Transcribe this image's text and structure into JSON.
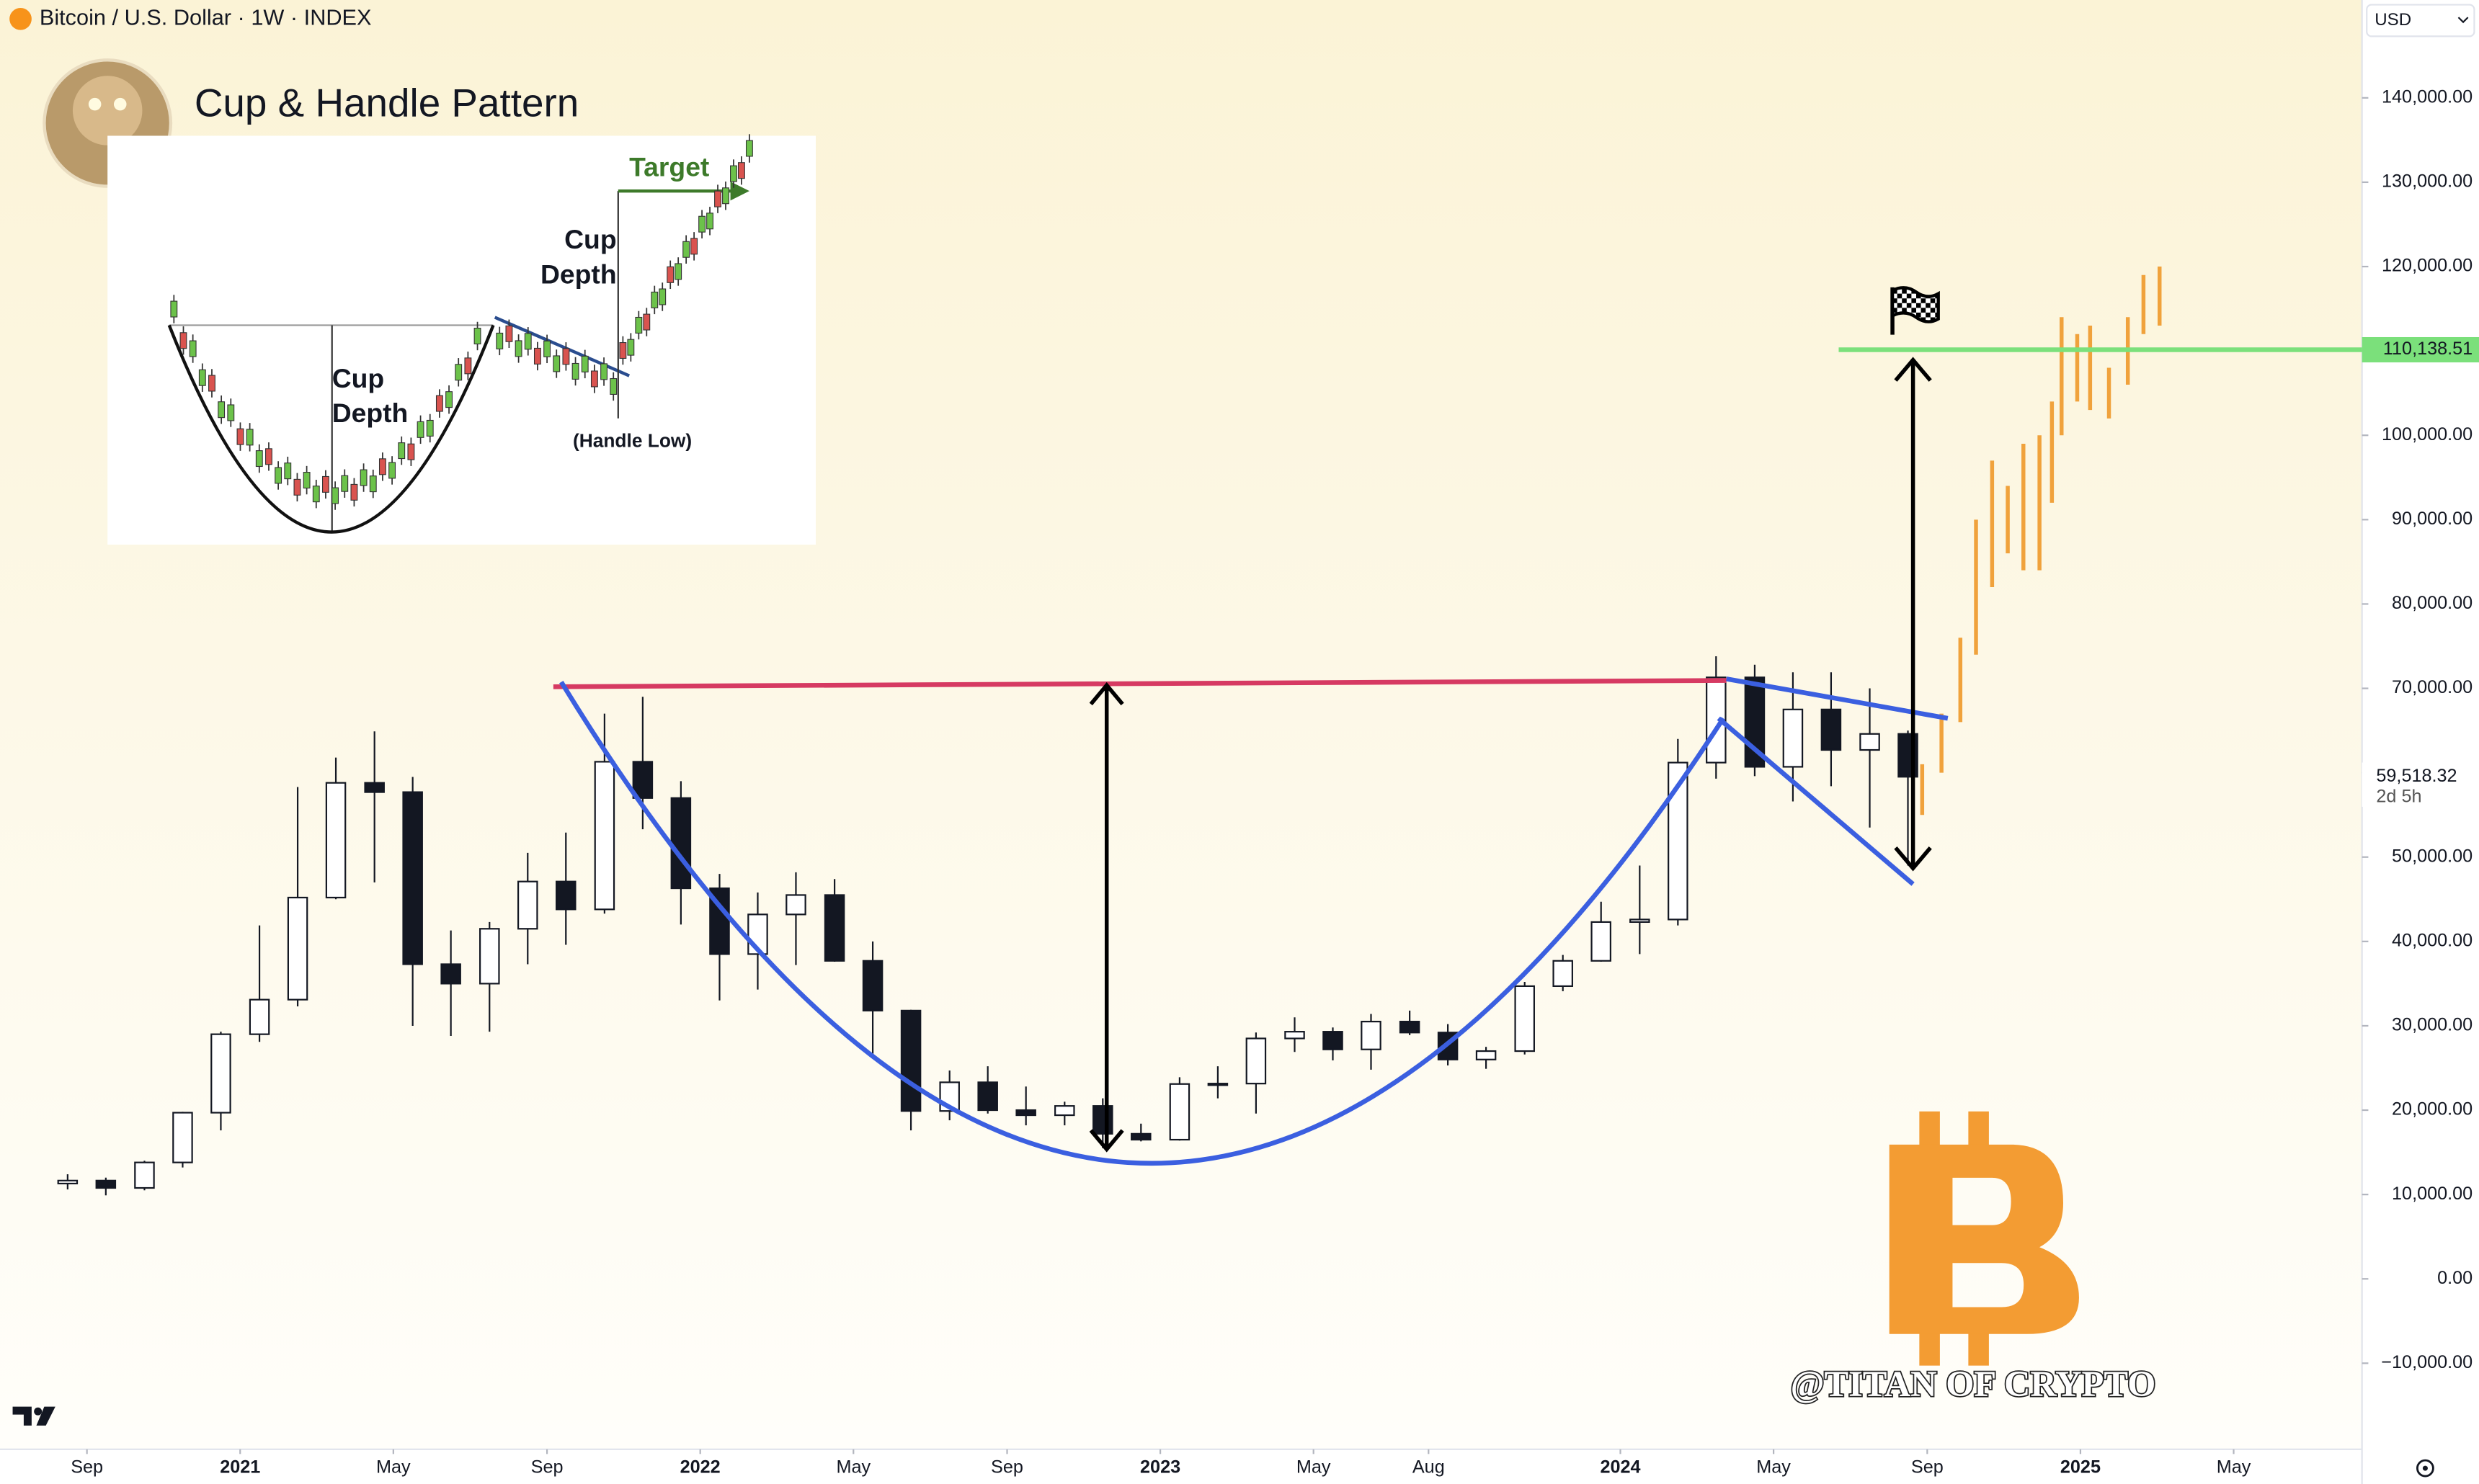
{
  "header": {
    "symbol": "Bitcoin / U.S. Dollar · 1W · INDEX",
    "currency": "USD"
  },
  "inset": {
    "target": "Target",
    "cup_depth_left": [
      "Cup",
      "Depth"
    ],
    "cup_depth_right": [
      "Cup",
      "Depth"
    ],
    "handle_low": "(Handle Low)"
  },
  "watermark": "@TITAN OF CRYPTO",
  "chart_data": {
    "type": "candlestick",
    "title": "Cup & Handle Pattern",
    "xlim": [
      2020.478,
      2025.612
    ],
    "ylim": [
      -20200,
      151600
    ],
    "grid": false,
    "xticks": [
      {
        "value": 2020.667,
        "label": "Sep"
      },
      2021,
      {
        "value": 2021.333,
        "label": "May"
      },
      {
        "value": 2021.667,
        "label": "Sep"
      },
      2022,
      {
        "value": 2022.333,
        "label": "May"
      },
      {
        "value": 2022.667,
        "label": "Sep"
      },
      2023,
      {
        "value": 2023.333,
        "label": "May"
      },
      {
        "value": 2023.583,
        "label": "Aug"
      },
      2024,
      {
        "value": 2024.333,
        "label": "May"
      },
      {
        "value": 2024.667,
        "label": "Sep"
      },
      2025,
      {
        "value": 2025.333,
        "label": "May"
      }
    ],
    "yticks": [
      {
        "value": 140000,
        "label": "140,000.00"
      },
      {
        "value": 130000,
        "label": "130,000.00"
      },
      {
        "value": 120000,
        "label": "120,000.00"
      },
      {
        "value": 110000,
        "label": "110,000.00"
      },
      {
        "value": 100000,
        "label": "100,000.00"
      },
      {
        "value": 90000,
        "label": "90,000.00"
      },
      {
        "value": 80000,
        "label": "80,000.00"
      },
      {
        "value": 70000,
        "label": "70,000.00"
      },
      {
        "value": 60000,
        "label": "60,000.00"
      },
      {
        "value": 50000,
        "label": "50,000.00"
      },
      {
        "value": 40000,
        "label": "40,000.00"
      },
      {
        "value": 30000,
        "label": "30,000.00"
      },
      {
        "value": 20000,
        "label": "20,000.00"
      },
      {
        "value": 10000,
        "label": "10,000.00"
      },
      {
        "value": 0,
        "label": "0.00"
      },
      {
        "value": -10000,
        "label": "−10,000.00"
      }
    ],
    "x": [
      2020.625,
      2020.708,
      2020.792,
      2020.875,
      2020.958,
      2021.042,
      2021.125,
      2021.208,
      2021.292,
      2021.375,
      2021.458,
      2021.542,
      2021.625,
      2021.708,
      2021.792,
      2021.875,
      2021.958,
      2022.042,
      2022.125,
      2022.208,
      2022.292,
      2022.375,
      2022.458,
      2022.542,
      2022.625,
      2022.708,
      2022.792,
      2022.875,
      2022.958,
      2023.042,
      2023.125,
      2023.208,
      2023.292,
      2023.375,
      2023.458,
      2023.542,
      2023.625,
      2023.708,
      2023.792,
      2023.875,
      2023.958,
      2024.042,
      2024.125,
      2024.208,
      2024.292,
      2024.375,
      2024.458,
      2024.542,
      2024.625
    ],
    "open": [
      11300,
      11650,
      10780,
      13800,
      19700,
      29000,
      33100,
      45200,
      58800,
      57700,
      37300,
      35000,
      41500,
      47100,
      43800,
      61300,
      57000,
      46300,
      38500,
      43200,
      45500,
      37700,
      31800,
      19900,
      23300,
      20000,
      19400,
      20500,
      17200,
      16500,
      23100,
      23150,
      28500,
      29300,
      27200,
      30500,
      29200,
      26000,
      27000,
      34700,
      37700,
      42300,
      42600,
      61200,
      71300,
      60700,
      67500,
      62700,
      64600
    ],
    "high": [
      12400,
      12000,
      14000,
      19800,
      29300,
      41900,
      58300,
      61800,
      64900,
      59500,
      41300,
      42300,
      50500,
      52900,
      67000,
      69000,
      59000,
      48000,
      45800,
      48200,
      47400,
      40000,
      31900,
      24700,
      25200,
      22800,
      21000,
      21400,
      18400,
      23900,
      25200,
      29200,
      31000,
      29800,
      31400,
      31800,
      30200,
      27500,
      35200,
      38400,
      44700,
      49000,
      64000,
      73800,
      72800,
      71900,
      71900,
      70000,
      65000
    ],
    "low": [
      10600,
      9900,
      10500,
      13200,
      17600,
      28100,
      32300,
      45000,
      47000,
      30000,
      28800,
      29300,
      37300,
      39600,
      43300,
      53300,
      42000,
      33000,
      34300,
      37200,
      37600,
      26700,
      17600,
      18800,
      19600,
      18200,
      18200,
      15500,
      16300,
      16400,
      21400,
      19600,
      26900,
      25900,
      24800,
      28900,
      25300,
      24900,
      26600,
      34100,
      37600,
      38500,
      41900,
      59300,
      59600,
      56600,
      58400,
      53500,
      49000
    ],
    "close": [
      11650,
      10780,
      13800,
      19700,
      29000,
      33100,
      45200,
      58800,
      57700,
      37300,
      35000,
      41500,
      47100,
      43800,
      61300,
      57000,
      46300,
      38500,
      43200,
      45500,
      37700,
      31800,
      19900,
      23300,
      20000,
      19400,
      20500,
      17200,
      16500,
      23100,
      23150,
      28500,
      29300,
      27200,
      30500,
      29200,
      26000,
      27000,
      34700,
      37700,
      42300,
      42600,
      61200,
      71300,
      60700,
      67500,
      62700,
      64600,
      59518.32
    ],
    "up_color": "#ffffff",
    "down_color": "#131722",
    "projection": {
      "color": "#f0a23c",
      "x": [
        2024.656,
        2024.698,
        2024.739,
        2024.773,
        2024.808,
        2024.842,
        2024.876,
        2024.911,
        2024.938,
        2024.959,
        2024.993,
        2025.021,
        2025.062,
        2025.103,
        2025.137,
        2025.172
      ],
      "low": [
        55000,
        60000,
        66000,
        74000,
        82000,
        86000,
        84000,
        84000,
        92000,
        100000,
        104000,
        103000,
        102000,
        106000,
        112000,
        113000
      ],
      "high": [
        61000,
        67000,
        76000,
        90000,
        97000,
        94000,
        99000,
        100000,
        104000,
        114000,
        112000,
        113000,
        108000,
        114000,
        119000,
        120000
      ]
    },
    "target_line": {
      "value": 110138.51,
      "label": "110,138.51",
      "color": "#7be07b"
    },
    "last_price": {
      "value": 59518.32,
      "label": "59,518.32",
      "countdown": "2d 5h"
    }
  }
}
